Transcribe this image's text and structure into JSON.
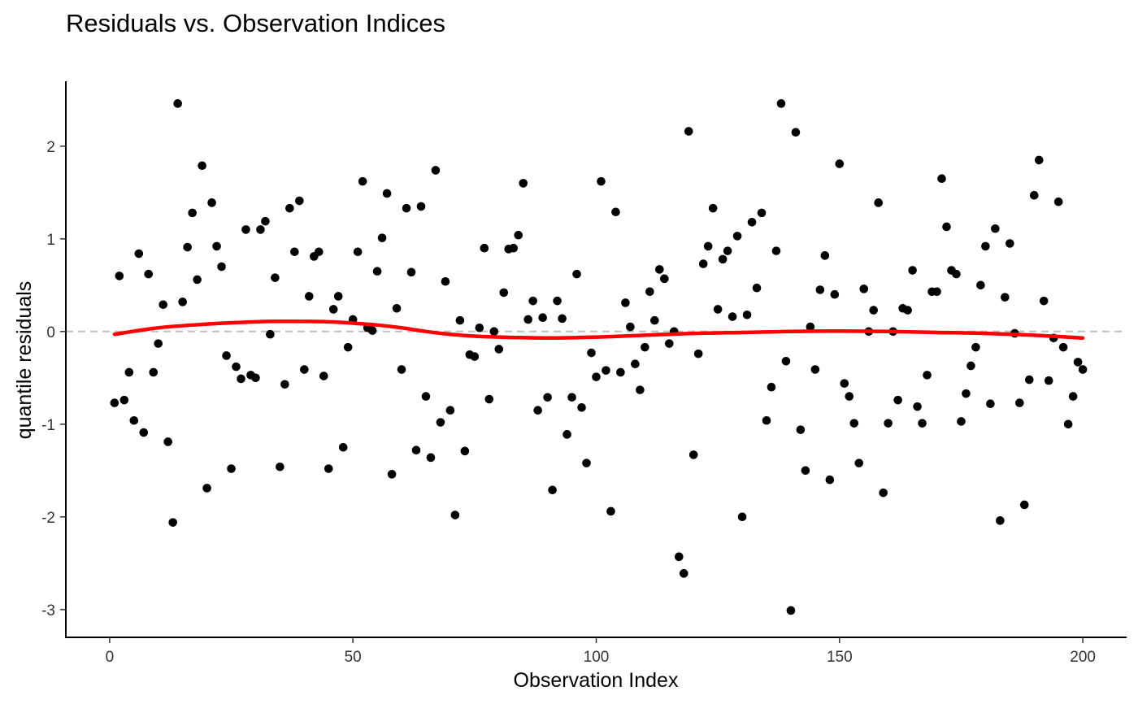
{
  "chart_data": {
    "type": "scatter",
    "title": "Residuals vs. Observation Indices",
    "xlabel": "Observation Index",
    "ylabel": "quantile residuals",
    "xlim": [
      -9,
      209
    ],
    "ylim": [
      -3.3,
      2.7
    ],
    "x_ticks": [
      0,
      50,
      100,
      150,
      200
    ],
    "y_ticks": [
      -3,
      -2,
      -1,
      0,
      1,
      2
    ],
    "grid": false,
    "legend": "none",
    "colors": {
      "points": "#000000",
      "smooth": "#ff0000",
      "reference": "#bfbfbf"
    },
    "reference_line": {
      "y": 0,
      "style": "dashed"
    },
    "points": {
      "x": [
        1,
        2,
        3,
        4,
        5,
        6,
        7,
        8,
        9,
        10,
        11,
        12,
        13,
        14,
        15,
        16,
        17,
        18,
        19,
        20,
        21,
        22,
        23,
        24,
        25,
        26,
        27,
        28,
        29,
        30,
        31,
        32,
        33,
        34,
        35,
        36,
        37,
        38,
        39,
        40,
        41,
        42,
        43,
        44,
        45,
        46,
        47,
        48,
        49,
        50,
        51,
        52,
        53,
        54,
        55,
        56,
        57,
        58,
        59,
        60,
        61,
        62,
        63,
        64,
        65,
        66,
        67,
        68,
        69,
        70,
        71,
        72,
        73,
        74,
        75,
        76,
        77,
        78,
        79,
        80,
        81,
        82,
        83,
        84,
        85,
        86,
        87,
        88,
        89,
        90,
        91,
        92,
        93,
        94,
        95,
        96,
        97,
        98,
        99,
        100,
        101,
        102,
        103,
        104,
        105,
        106,
        107,
        108,
        109,
        110,
        111,
        112,
        113,
        114,
        115,
        116,
        117,
        118,
        119,
        120,
        121,
        122,
        123,
        124,
        125,
        126,
        127,
        128,
        129,
        130,
        131,
        132,
        133,
        134,
        135,
        136,
        137,
        138,
        139,
        140,
        141,
        142,
        143,
        144,
        145,
        146,
        147,
        148,
        149,
        150,
        151,
        152,
        153,
        154,
        155,
        156,
        157,
        158,
        159,
        160,
        161,
        162,
        163,
        164,
        165,
        166,
        167,
        168,
        169,
        170,
        171,
        172,
        173,
        174,
        175,
        176,
        177,
        178,
        179,
        180,
        181,
        182,
        183,
        184,
        185,
        186,
        187,
        188,
        189,
        190,
        191,
        192,
        193,
        194,
        195,
        196,
        197,
        198,
        199,
        200
      ],
      "y": [
        -0.77,
        0.6,
        -0.74,
        -0.44,
        -0.96,
        0.84,
        -1.09,
        0.62,
        -0.44,
        -0.13,
        0.29,
        -1.19,
        -2.06,
        2.46,
        0.32,
        0.91,
        1.28,
        0.56,
        1.79,
        -1.69,
        1.39,
        0.92,
        0.7,
        -0.26,
        -1.48,
        -0.38,
        -0.51,
        1.1,
        -0.47,
        -0.5,
        1.1,
        1.19,
        -0.03,
        0.58,
        -1.46,
        -0.57,
        1.33,
        0.86,
        1.41,
        -0.41,
        0.38,
        0.81,
        0.86,
        -0.48,
        -1.48,
        0.24,
        0.38,
        -1.25,
        -0.17,
        0.13,
        0.86,
        1.62,
        0.04,
        0.01,
        0.65,
        1.01,
        1.49,
        -1.54,
        0.25,
        -0.41,
        1.33,
        0.64,
        -1.28,
        1.35,
        -0.7,
        -1.36,
        1.74,
        -0.98,
        0.54,
        -0.85,
        -1.98,
        0.12,
        -1.29,
        -0.25,
        -0.27,
        0.04,
        0.9,
        -0.73,
        0.0,
        -0.19,
        0.42,
        0.89,
        0.9,
        1.04,
        1.6,
        0.13,
        0.33,
        -0.85,
        0.15,
        -0.71,
        -1.71,
        0.33,
        0.14,
        -1.11,
        -0.71,
        0.62,
        -0.82,
        -1.42,
        -0.23,
        -0.49,
        1.62,
        -0.42,
        -1.94,
        1.29,
        -0.44,
        0.31,
        0.05,
        -0.35,
        -0.63,
        -0.17,
        0.43,
        0.12,
        0.67,
        0.57,
        -0.13,
        0.0,
        -2.43,
        -2.61,
        2.16,
        -1.33,
        -0.24,
        0.73,
        0.92,
        1.33,
        0.24,
        0.78,
        0.87,
        0.16,
        1.03,
        -2.0,
        0.18,
        1.18,
        0.47,
        1.28,
        -0.96,
        -0.6,
        0.87,
        2.46,
        -0.32,
        -3.01,
        2.15,
        -1.06,
        -1.5,
        0.05,
        -0.41,
        0.45,
        0.82,
        -1.6,
        0.4,
        1.81,
        -0.56,
        -0.7,
        -0.99,
        -1.42,
        0.46,
        0.0,
        0.23,
        1.39,
        -1.74,
        -0.99,
        0.0,
        -0.74,
        0.25,
        0.23,
        0.66,
        -0.81,
        -0.99,
        -0.47,
        0.43,
        0.43,
        1.65,
        1.13,
        0.66,
        0.62,
        -0.97,
        -0.67,
        -0.37,
        -0.17,
        0.5,
        0.92,
        -0.78,
        1.11,
        -2.04,
        0.37,
        0.95,
        -0.02,
        -0.77,
        -1.87,
        -0.52,
        1.47,
        1.85,
        0.33,
        -0.53,
        -0.07,
        1.4,
        -0.17,
        -1.0,
        -0.7,
        -0.33,
        -0.41
      ]
    },
    "smooth": {
      "x": [
        1,
        10,
        20,
        30,
        36,
        45,
        50,
        55,
        60,
        65,
        70,
        75,
        80,
        90,
        100,
        110,
        120,
        130,
        140,
        150,
        160,
        170,
        180,
        190,
        200
      ],
      "y": [
        -0.03,
        0.04,
        0.08,
        0.105,
        0.11,
        0.105,
        0.09,
        0.07,
        0.04,
        0.0,
        -0.03,
        -0.05,
        -0.06,
        -0.07,
        -0.06,
        -0.04,
        -0.02,
        -0.01,
        0.0,
        0.005,
        0.0,
        -0.01,
        -0.02,
        -0.04,
        -0.07
      ]
    }
  }
}
